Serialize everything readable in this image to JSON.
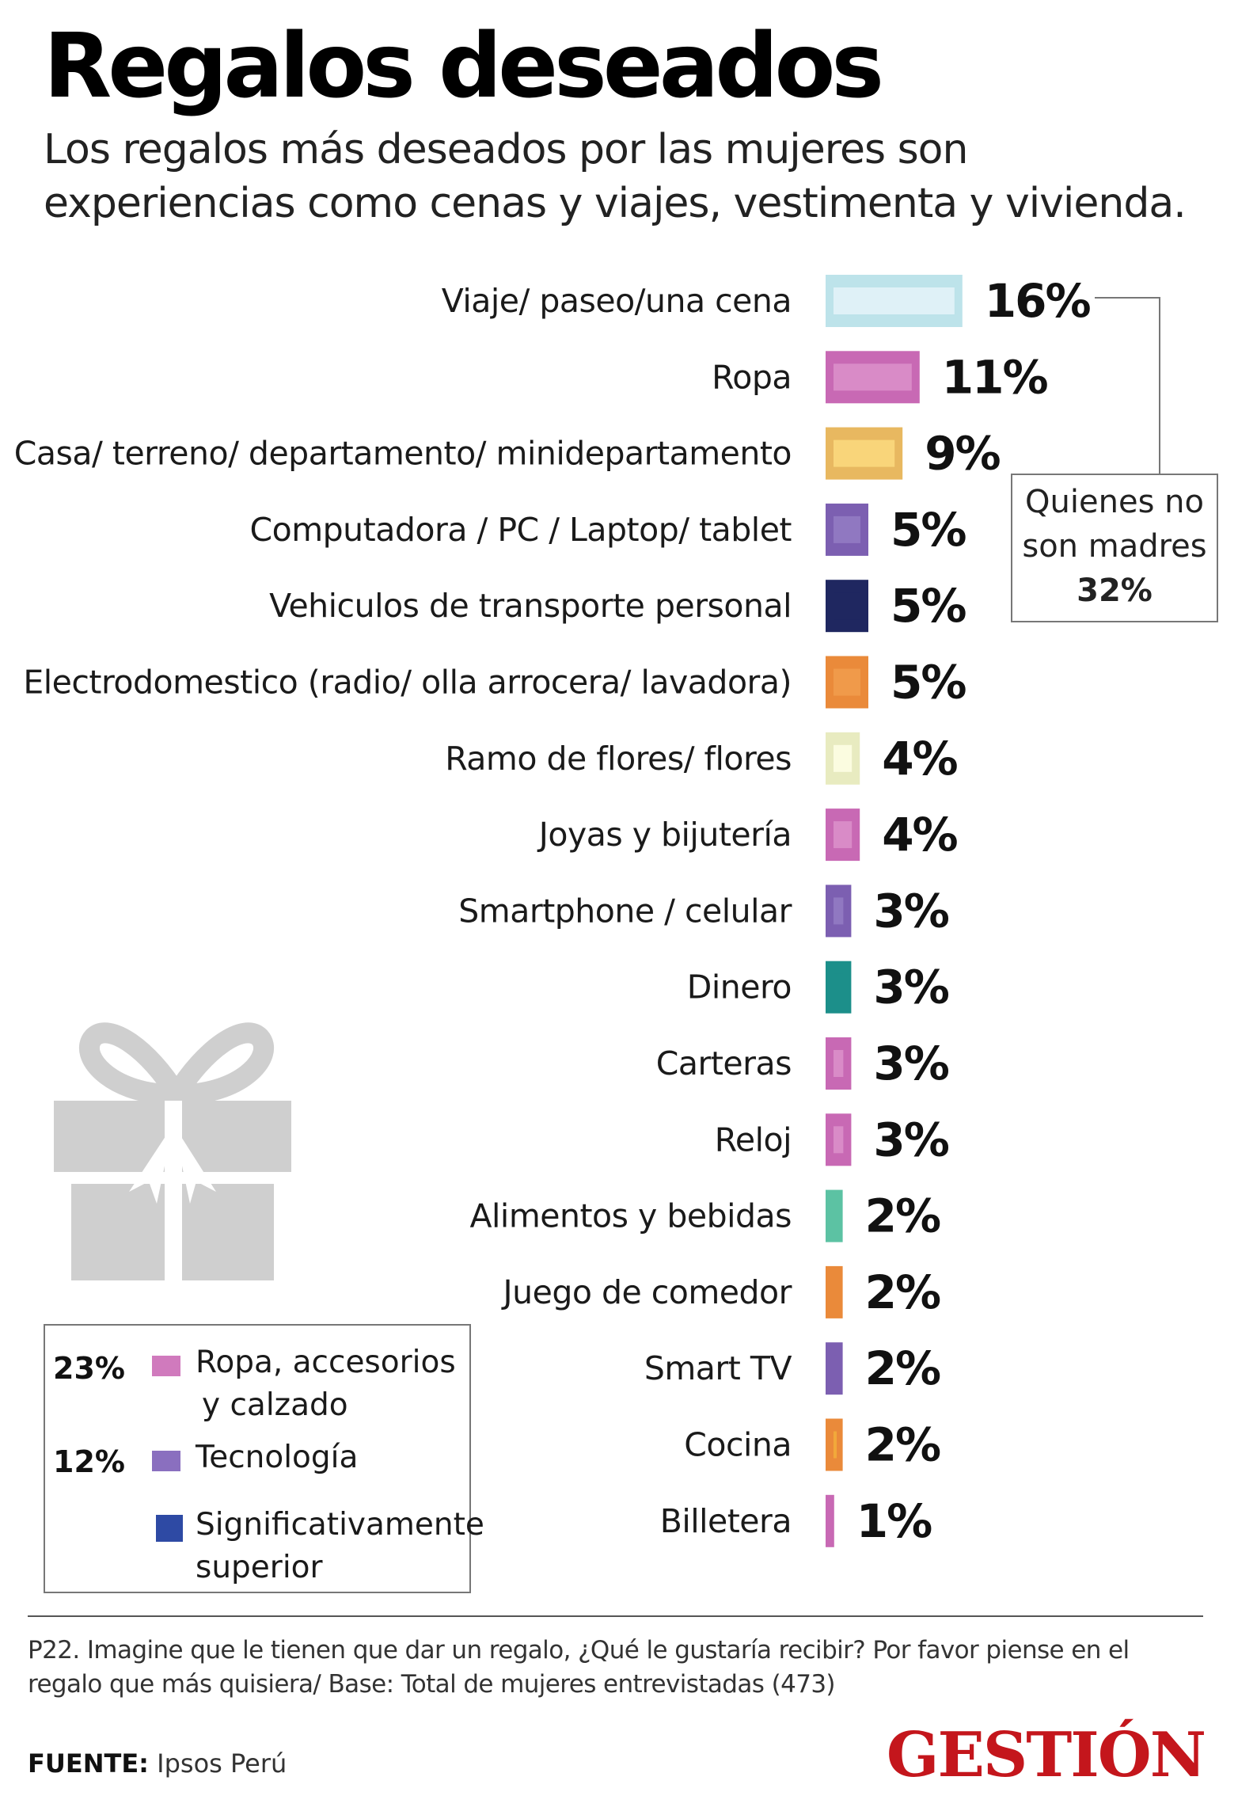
{
  "header": {
    "title": "Regalos deseados",
    "subtitle": "Los regalos más deseados por las mujeres son experiencias como cenas y viajes, vestimenta y vivienda."
  },
  "chart_data": {
    "type": "bar",
    "orientation": "horizontal",
    "categories": [
      "Viaje/ paseo/una cena",
      "Ropa",
      "Casa/ terreno/ departamento/ minidepartamento",
      "Computadora / PC / Laptop/ tablet",
      "Vehiculos de transporte personal",
      "Electrodomestico (radio/ olla arrocera/ lavadora)",
      "Ramo de flores/ flores",
      "Joyas y bijutería",
      "Smartphone / celular",
      "Dinero",
      "Carteras",
      "Reloj",
      "Alimentos y bebidas",
      "Juego de comedor",
      "Smart TV",
      "Cocina",
      "Billetera"
    ],
    "values": [
      16,
      11,
      9,
      5,
      5,
      5,
      4,
      4,
      3,
      3,
      3,
      3,
      2,
      2,
      2,
      2,
      1
    ],
    "value_labels": [
      "16%",
      "11%",
      "9%",
      "5%",
      "5%",
      "5%",
      "4%",
      "4%",
      "3%",
      "3%",
      "3%",
      "3%",
      "2%",
      "2%",
      "2%",
      "2%",
      "1%"
    ],
    "colors": [
      "#bde3ea",
      "#c869b4",
      "#e8b860",
      "#7c5fb1",
      "#1f2760",
      "#ea8a3a",
      "#e8ebc0",
      "#c869b4",
      "#7c5fb1",
      "#1c8f8a",
      "#c869b4",
      "#c869b4",
      "#5cc2a3",
      "#ea8a3a",
      "#7c5fb1",
      "#ea8a3a",
      "#c869b4"
    ],
    "inner_colors": [
      "#dff1f7",
      "#d98bc7",
      "#f9d57a",
      "#9078c1",
      "#1f2760",
      "#f09a4a",
      "#fbfce0",
      "#d98bc7",
      "#9078c1",
      "#1c8f8a",
      "#d98bc7",
      "#d98bc7",
      "#5cc2a3",
      "#ea8a3a",
      "#7c5fb1",
      "#f2a83a",
      "#c869b4"
    ],
    "callout": {
      "line1": "Quienes no",
      "line2": "son madres",
      "value": "32%"
    }
  },
  "legend": {
    "items": [
      {
        "pct": "23%",
        "line1": "Ropa, accesorios",
        "line2": "y calzado",
        "color": "#d07abd"
      },
      {
        "pct": "12%",
        "line1": "Tecnología",
        "line2": "",
        "color": "#8a6fbf"
      },
      {
        "pct": "",
        "line1": "Significativamente",
        "line2": "superior",
        "color": "#2e4aa4"
      }
    ]
  },
  "footer": {
    "note": "P22. Imagine que le tienen que dar un regalo, ¿Qué le gustaría recibir? Por favor piense en el regalo que más quisiera/ Base: Total de mujeres entrevistadas (473)",
    "source_label": "FUENTE:",
    "source_value": "Ipsos Perú",
    "logo": "GESTIÓN"
  },
  "icons": {
    "gift": "gift-icon"
  }
}
